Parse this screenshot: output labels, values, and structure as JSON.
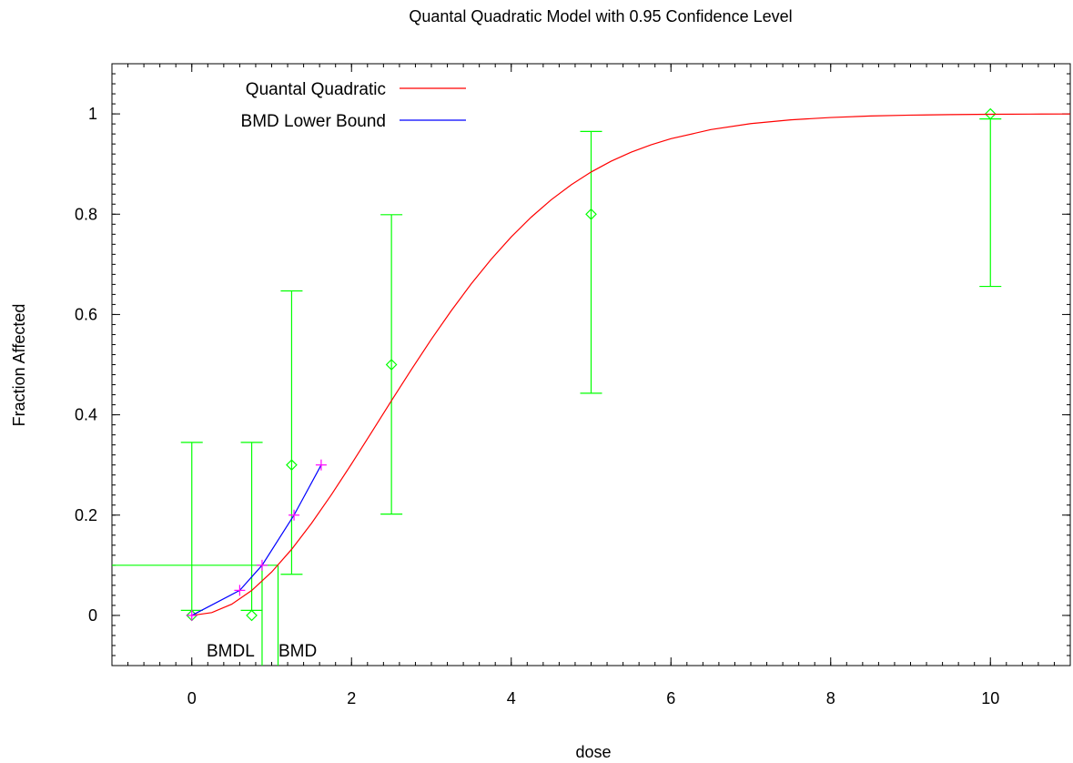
{
  "chart_data": {
    "type": "scatter",
    "title": "Quantal Quadratic Model with 0.95 Confidence Level",
    "xlabel": "dose",
    "ylabel": "Fraction Affected",
    "xlim": [
      -1,
      11
    ],
    "ylim": [
      -0.1,
      1.1
    ],
    "x_ticks": [
      0,
      2,
      4,
      6,
      8,
      10
    ],
    "y_ticks": [
      0,
      0.2,
      0.4,
      0.6,
      0.8,
      1
    ],
    "x_tick_labels": [
      "0",
      "2",
      "4",
      "6",
      "8",
      "10"
    ],
    "y_tick_labels": [
      "0",
      "0.2",
      "0.4",
      "0.6",
      "0.8",
      "1"
    ],
    "legend_position": "top-left",
    "legend": [
      {
        "name": "Quantal Quadratic",
        "color": "#ff0000"
      },
      {
        "name": "BMD Lower Bound",
        "color": "#0000ff"
      }
    ],
    "observed": {
      "color": "#00ff00",
      "points": [
        {
          "dose": 0,
          "fraction": 0,
          "lower": 0.01,
          "upper": 0.345
        },
        {
          "dose": 0.75,
          "fraction": 0,
          "lower": 0.01,
          "upper": 0.345
        },
        {
          "dose": 1.25,
          "fraction": 0.3,
          "lower": 0.082,
          "upper": 0.647
        },
        {
          "dose": 2.5,
          "fraction": 0.5,
          "lower": 0.202,
          "upper": 0.799
        },
        {
          "dose": 5,
          "fraction": 0.8,
          "lower": 0.443,
          "upper": 0.965
        },
        {
          "dose": 10,
          "fraction": 1.0,
          "lower": 0.656,
          "upper": 0.99
        }
      ]
    },
    "model_curve": {
      "name": "Quantal Quadratic",
      "color": "#ff0000",
      "x": [
        0,
        0.25,
        0.5,
        0.75,
        1.0,
        1.25,
        1.5,
        1.75,
        2.0,
        2.25,
        2.5,
        2.75,
        3.0,
        3.25,
        3.5,
        3.75,
        4.0,
        4.25,
        4.5,
        4.75,
        5.0,
        5.25,
        5.5,
        5.75,
        6.0,
        6.5,
        7.0,
        7.5,
        8.0,
        8.5,
        9.0,
        9.5,
        10.0,
        10.5,
        11.0
      ],
      "y": [
        0,
        0.0056,
        0.0224,
        0.0497,
        0.0866,
        0.1318,
        0.1839,
        0.2412,
        0.3021,
        0.3649,
        0.4281,
        0.4904,
        0.5507,
        0.6078,
        0.6613,
        0.7103,
        0.7547,
        0.7941,
        0.8287,
        0.8586,
        0.8841,
        0.9056,
        0.9235,
        0.9383,
        0.9505,
        0.9687,
        0.9806,
        0.9881,
        0.9928,
        0.9958,
        0.9975,
        0.9986,
        0.9992,
        0.9996,
        0.9998
      ]
    },
    "bmd_lower_bound": {
      "name": "BMD Lower Bound",
      "color": "#0000ff",
      "marker_color": "#ff00ff",
      "x": [
        0,
        0.6,
        0.88,
        1.28,
        1.62
      ],
      "y": [
        0,
        0.05,
        0.1,
        0.2,
        0.3
      ]
    },
    "bmr_level": 0.1,
    "bmdl": {
      "label": "BMDL",
      "dose": 0.88
    },
    "bmd": {
      "label": "BMD",
      "dose": 1.08
    }
  }
}
